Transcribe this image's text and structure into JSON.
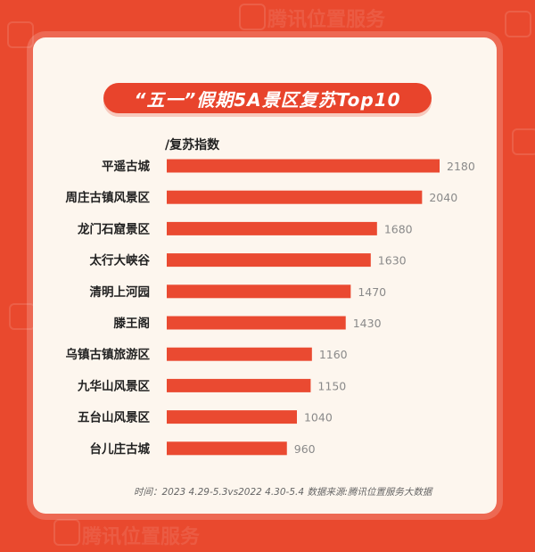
{
  "watermark": "腾讯位置服务",
  "chart_data": {
    "type": "bar",
    "orientation": "horizontal",
    "title": "“五一”假期5A景区复苏Top10",
    "unit_label": "/复苏指数",
    "categories": [
      "平遥古城",
      "周庄古镇风景区",
      "龙门石窟景区",
      "太行大峡谷",
      "清明上河园",
      "滕王阁",
      "乌镇古镇旅游区",
      "九华山风景区",
      "五台山风景区",
      "台儿庄古城"
    ],
    "values": [
      2180,
      2040,
      1680,
      1630,
      1470,
      1430,
      1160,
      1150,
      1040,
      960
    ],
    "value_labels": [
      "2180",
      "2040",
      "1680",
      "1630",
      "1470",
      "1430",
      "1160",
      "1150",
      "1040",
      "960"
    ],
    "bar_color": "#ea4a31",
    "legend": "none",
    "grid": false
  },
  "footnote": "时间：2023 4.29-5.3vs2022 4.30-5.4  数据来源:腾讯位置服务大数据"
}
